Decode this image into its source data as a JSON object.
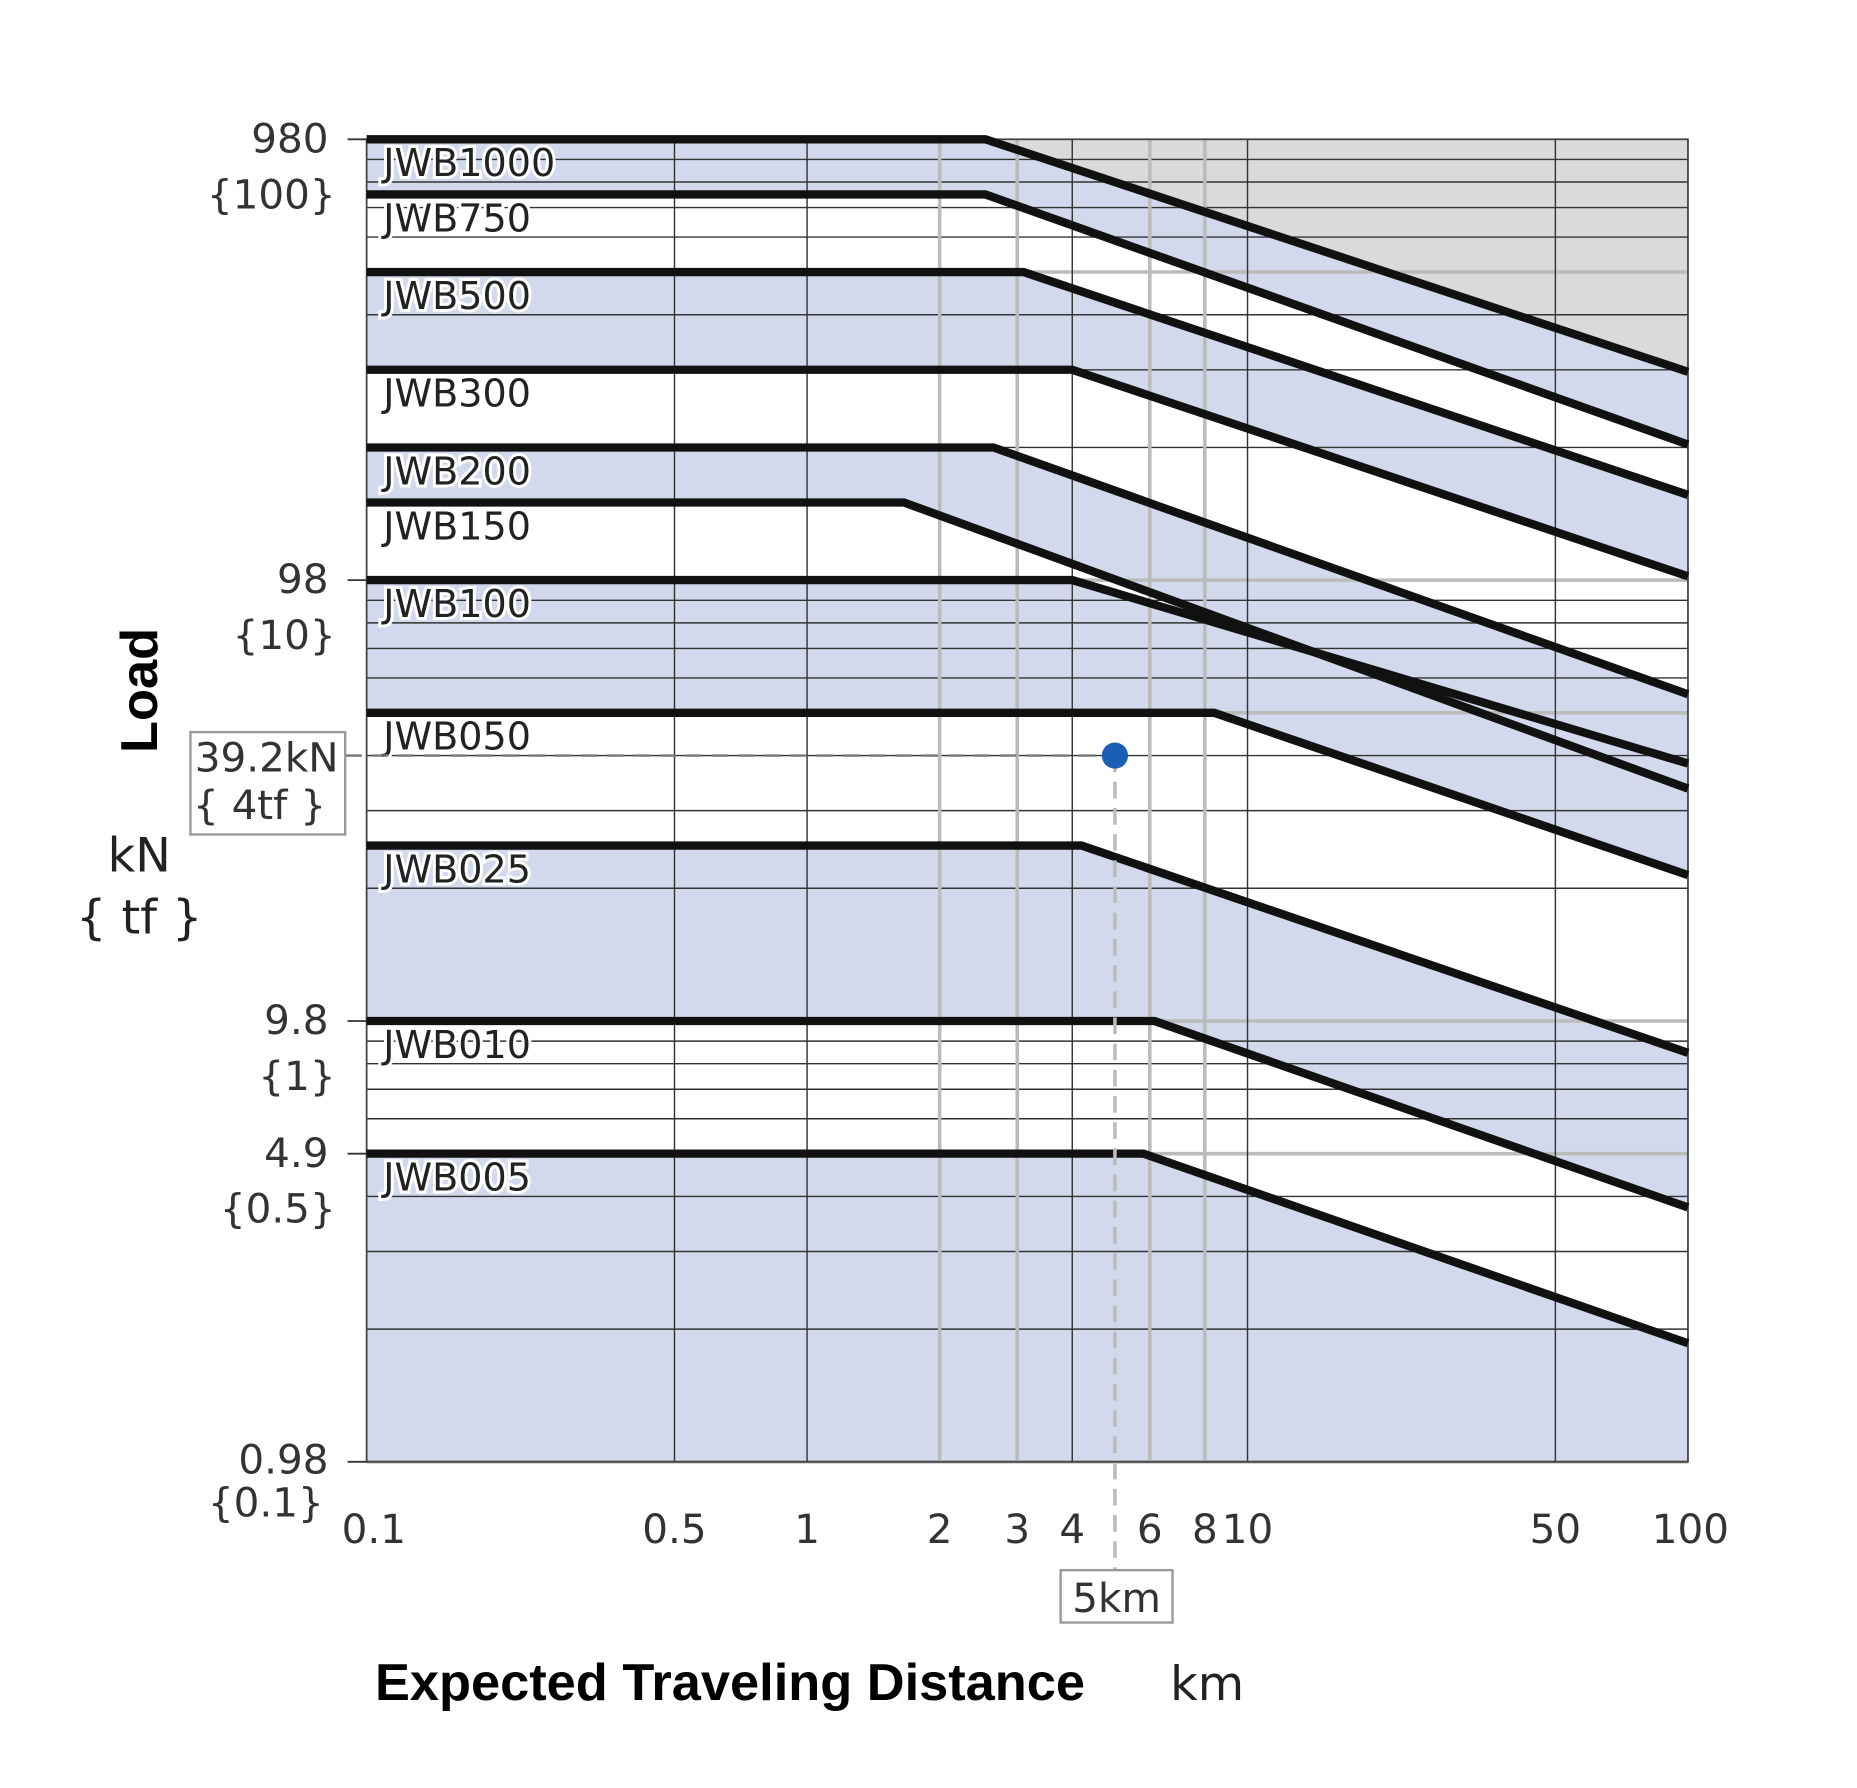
{
  "chart_data": {
    "type": "line",
    "xlabel": "Expected Traveling Distance",
    "xunit": "km",
    "ylabel": "Load",
    "yunit": "kN",
    "yunit_alt": "{ tf }",
    "xscale": "log",
    "yscale": "log",
    "xlim": [
      0.1,
      100
    ],
    "ylim": [
      0.98,
      980
    ],
    "x_ticks": [
      0.1,
      0.5,
      1,
      2,
      3,
      4,
      6,
      8,
      10,
      50,
      100
    ],
    "x_tick_labels": [
      "0.1",
      "0.5",
      "1",
      "2",
      "3",
      "4",
      "6",
      "8",
      "10",
      "50",
      "100"
    ],
    "y_ticks": [
      {
        "value": 980,
        "label": "980",
        "alt": "{100}"
      },
      {
        "value": 98,
        "label": "98",
        "alt": "{10}"
      },
      {
        "value": 9.8,
        "label": "9.8",
        "alt": "{1}"
      },
      {
        "value": 4.9,
        "label": "4.9",
        "alt": "{0.5}"
      },
      {
        "value": 0.98,
        "label": "0.98",
        "alt": "{0.1}"
      }
    ],
    "grid": true,
    "series": [
      {
        "name": "JWB1000",
        "load": 980,
        "knee_km": 2.54,
        "load_at_100km": 291
      },
      {
        "name": "JWB750",
        "load": 735,
        "knee_km": 2.54,
        "load_at_100km": 199
      },
      {
        "name": "JWB500",
        "load": 490,
        "knee_km": 3.1,
        "load_at_100km": 153
      },
      {
        "name": "JWB300",
        "load": 294,
        "knee_km": 4.0,
        "load_at_100km": 100
      },
      {
        "name": "JWB200",
        "load": 196,
        "knee_km": 2.65,
        "load_at_100km": 54
      },
      {
        "name": "JWB150",
        "load": 147,
        "knee_km": 1.66,
        "load_at_100km": 33
      },
      {
        "name": "JWB100",
        "load": 98,
        "knee_km": 4.0,
        "load_at_100km": 37.6
      },
      {
        "name": "JWB050",
        "load": 49,
        "knee_km": 8.4,
        "load_at_100km": 21
      },
      {
        "name": "JWB025",
        "load": 24.5,
        "knee_km": 4.2,
        "load_at_100km": 8.3
      },
      {
        "name": "JWB010",
        "load": 9.8,
        "knee_km": 6.15,
        "load_at_100km": 3.7
      },
      {
        "name": "JWB005",
        "load": 4.9,
        "knee_km": 5.8,
        "load_at_100km": 1.82
      }
    ],
    "annotation": {
      "x": 5,
      "y": 39.2,
      "y_label": "39.2kN",
      "y_label_alt": "{ 4tf }",
      "x_label": "5km",
      "color": "#1a5fb4"
    },
    "colors": {
      "band": "#d3d9ec",
      "over_region": "#d9dbdb",
      "line": "#111111"
    }
  }
}
